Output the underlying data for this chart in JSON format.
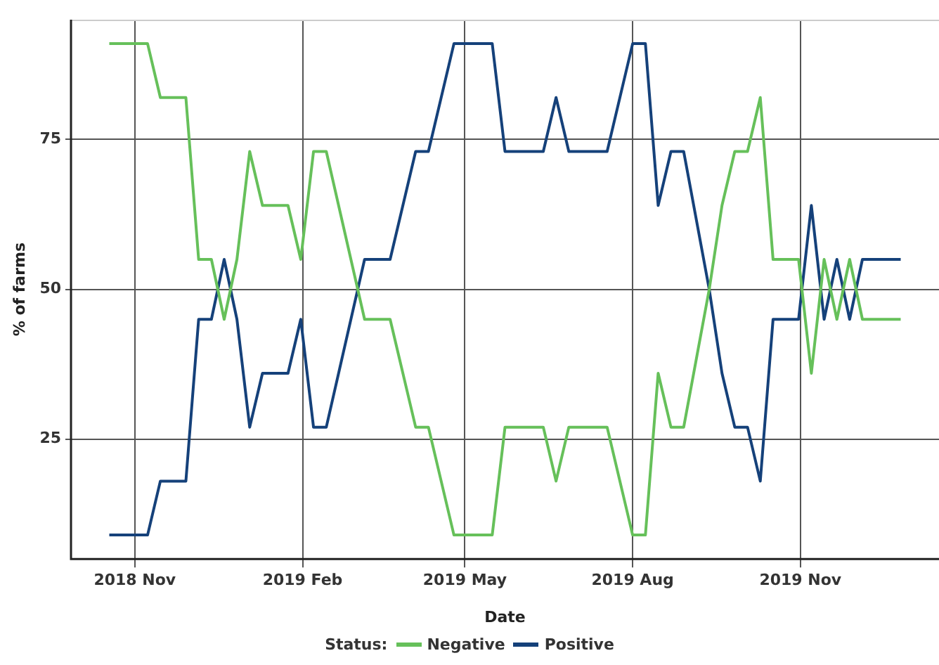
{
  "chart_data": {
    "type": "line",
    "xlabel": "Date",
    "ylabel": "% of farms",
    "legend_title": "Status:",
    "legend": "bottom",
    "grid": true,
    "marker": "none",
    "line_style": "solid",
    "x": [
      "2018-10-18",
      "2018-11-08",
      "2018-11-15",
      "2018-11-29",
      "2018-12-06",
      "2018-12-13",
      "2018-12-20",
      "2018-12-27",
      "2019-01-03",
      "2019-01-10",
      "2019-01-24",
      "2019-01-31",
      "2019-02-07",
      "2019-02-14",
      "2019-03-07",
      "2019-03-21",
      "2019-04-04",
      "2019-04-11",
      "2019-04-25",
      "2019-05-16",
      "2019-05-23",
      "2019-06-13",
      "2019-06-20",
      "2019-06-27",
      "2019-07-18",
      "2019-08-01",
      "2019-08-08",
      "2019-08-15",
      "2019-08-22",
      "2019-08-29",
      "2019-09-12",
      "2019-09-19",
      "2019-09-26",
      "2019-10-03",
      "2019-10-10",
      "2019-10-17",
      "2019-10-31",
      "2019-11-07",
      "2019-11-14",
      "2019-11-21",
      "2019-11-28",
      "2019-12-05",
      "2019-12-26"
    ],
    "series": [
      {
        "name": "Negative",
        "color": "#66c05a",
        "values": [
          91,
          91,
          82,
          82,
          55,
          55,
          45,
          55,
          73,
          64,
          64,
          55,
          73,
          73,
          45,
          45,
          27,
          27,
          9,
          9,
          27,
          27,
          18,
          27,
          27,
          9,
          9,
          36,
          27,
          27,
          50,
          64,
          73,
          73,
          82,
          55,
          55,
          36,
          55,
          45,
          55,
          45,
          45
        ]
      },
      {
        "name": "Positive",
        "color": "#15417a",
        "values": [
          9,
          9,
          18,
          18,
          45,
          45,
          55,
          45,
          27,
          36,
          36,
          45,
          27,
          27,
          55,
          55,
          73,
          73,
          91,
          91,
          73,
          73,
          82,
          73,
          73,
          91,
          91,
          64,
          73,
          73,
          50,
          36,
          27,
          27,
          18,
          45,
          45,
          64,
          45,
          55,
          45,
          55,
          55
        ]
      }
    ],
    "xlim": [
      "2018-09-27",
      "2020-01-16"
    ],
    "xticks": [
      {
        "value": "2018-11-01",
        "label": "2018 Nov"
      },
      {
        "value": "2019-02-01",
        "label": "2019 Feb"
      },
      {
        "value": "2019-05-01",
        "label": "2019 May"
      },
      {
        "value": "2019-08-01",
        "label": "2019 Aug"
      },
      {
        "value": "2019-11-01",
        "label": "2019 Nov"
      }
    ],
    "ylim": [
      5,
      95
    ],
    "yticks": [
      25,
      50,
      75
    ]
  }
}
